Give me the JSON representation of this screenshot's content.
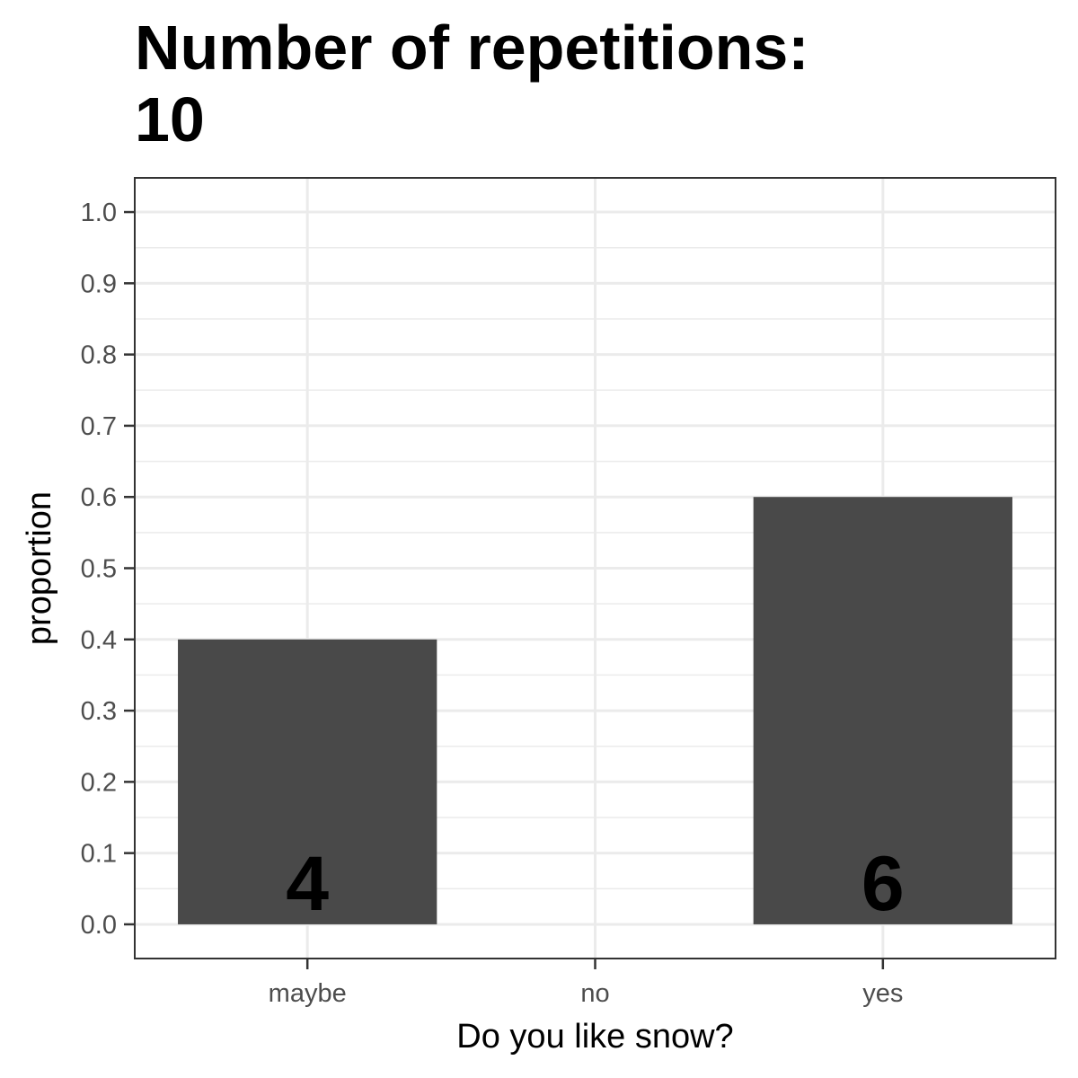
{
  "chart_data": {
    "type": "bar",
    "title_lines": [
      "Number of repetitions:",
      "10"
    ],
    "xlabel": "Do you like snow?",
    "ylabel": "proportion",
    "categories": [
      "maybe",
      "no",
      "yes"
    ],
    "values": [
      0.4,
      0.0,
      0.6
    ],
    "data_labels": [
      "4",
      "",
      "6"
    ],
    "ylim": [
      -0.048,
      1.048
    ],
    "y_ticks": [
      "0.0",
      "0.1",
      "0.2",
      "0.3",
      "0.4",
      "0.5",
      "0.6",
      "0.7",
      "0.8",
      "0.9",
      "1.0"
    ],
    "grid": true,
    "legend": "none",
    "colors": {
      "bar": "#494949",
      "grid": "#ebebeb",
      "panel_border": "#333333",
      "tick_text": "#4d4d4d"
    }
  }
}
